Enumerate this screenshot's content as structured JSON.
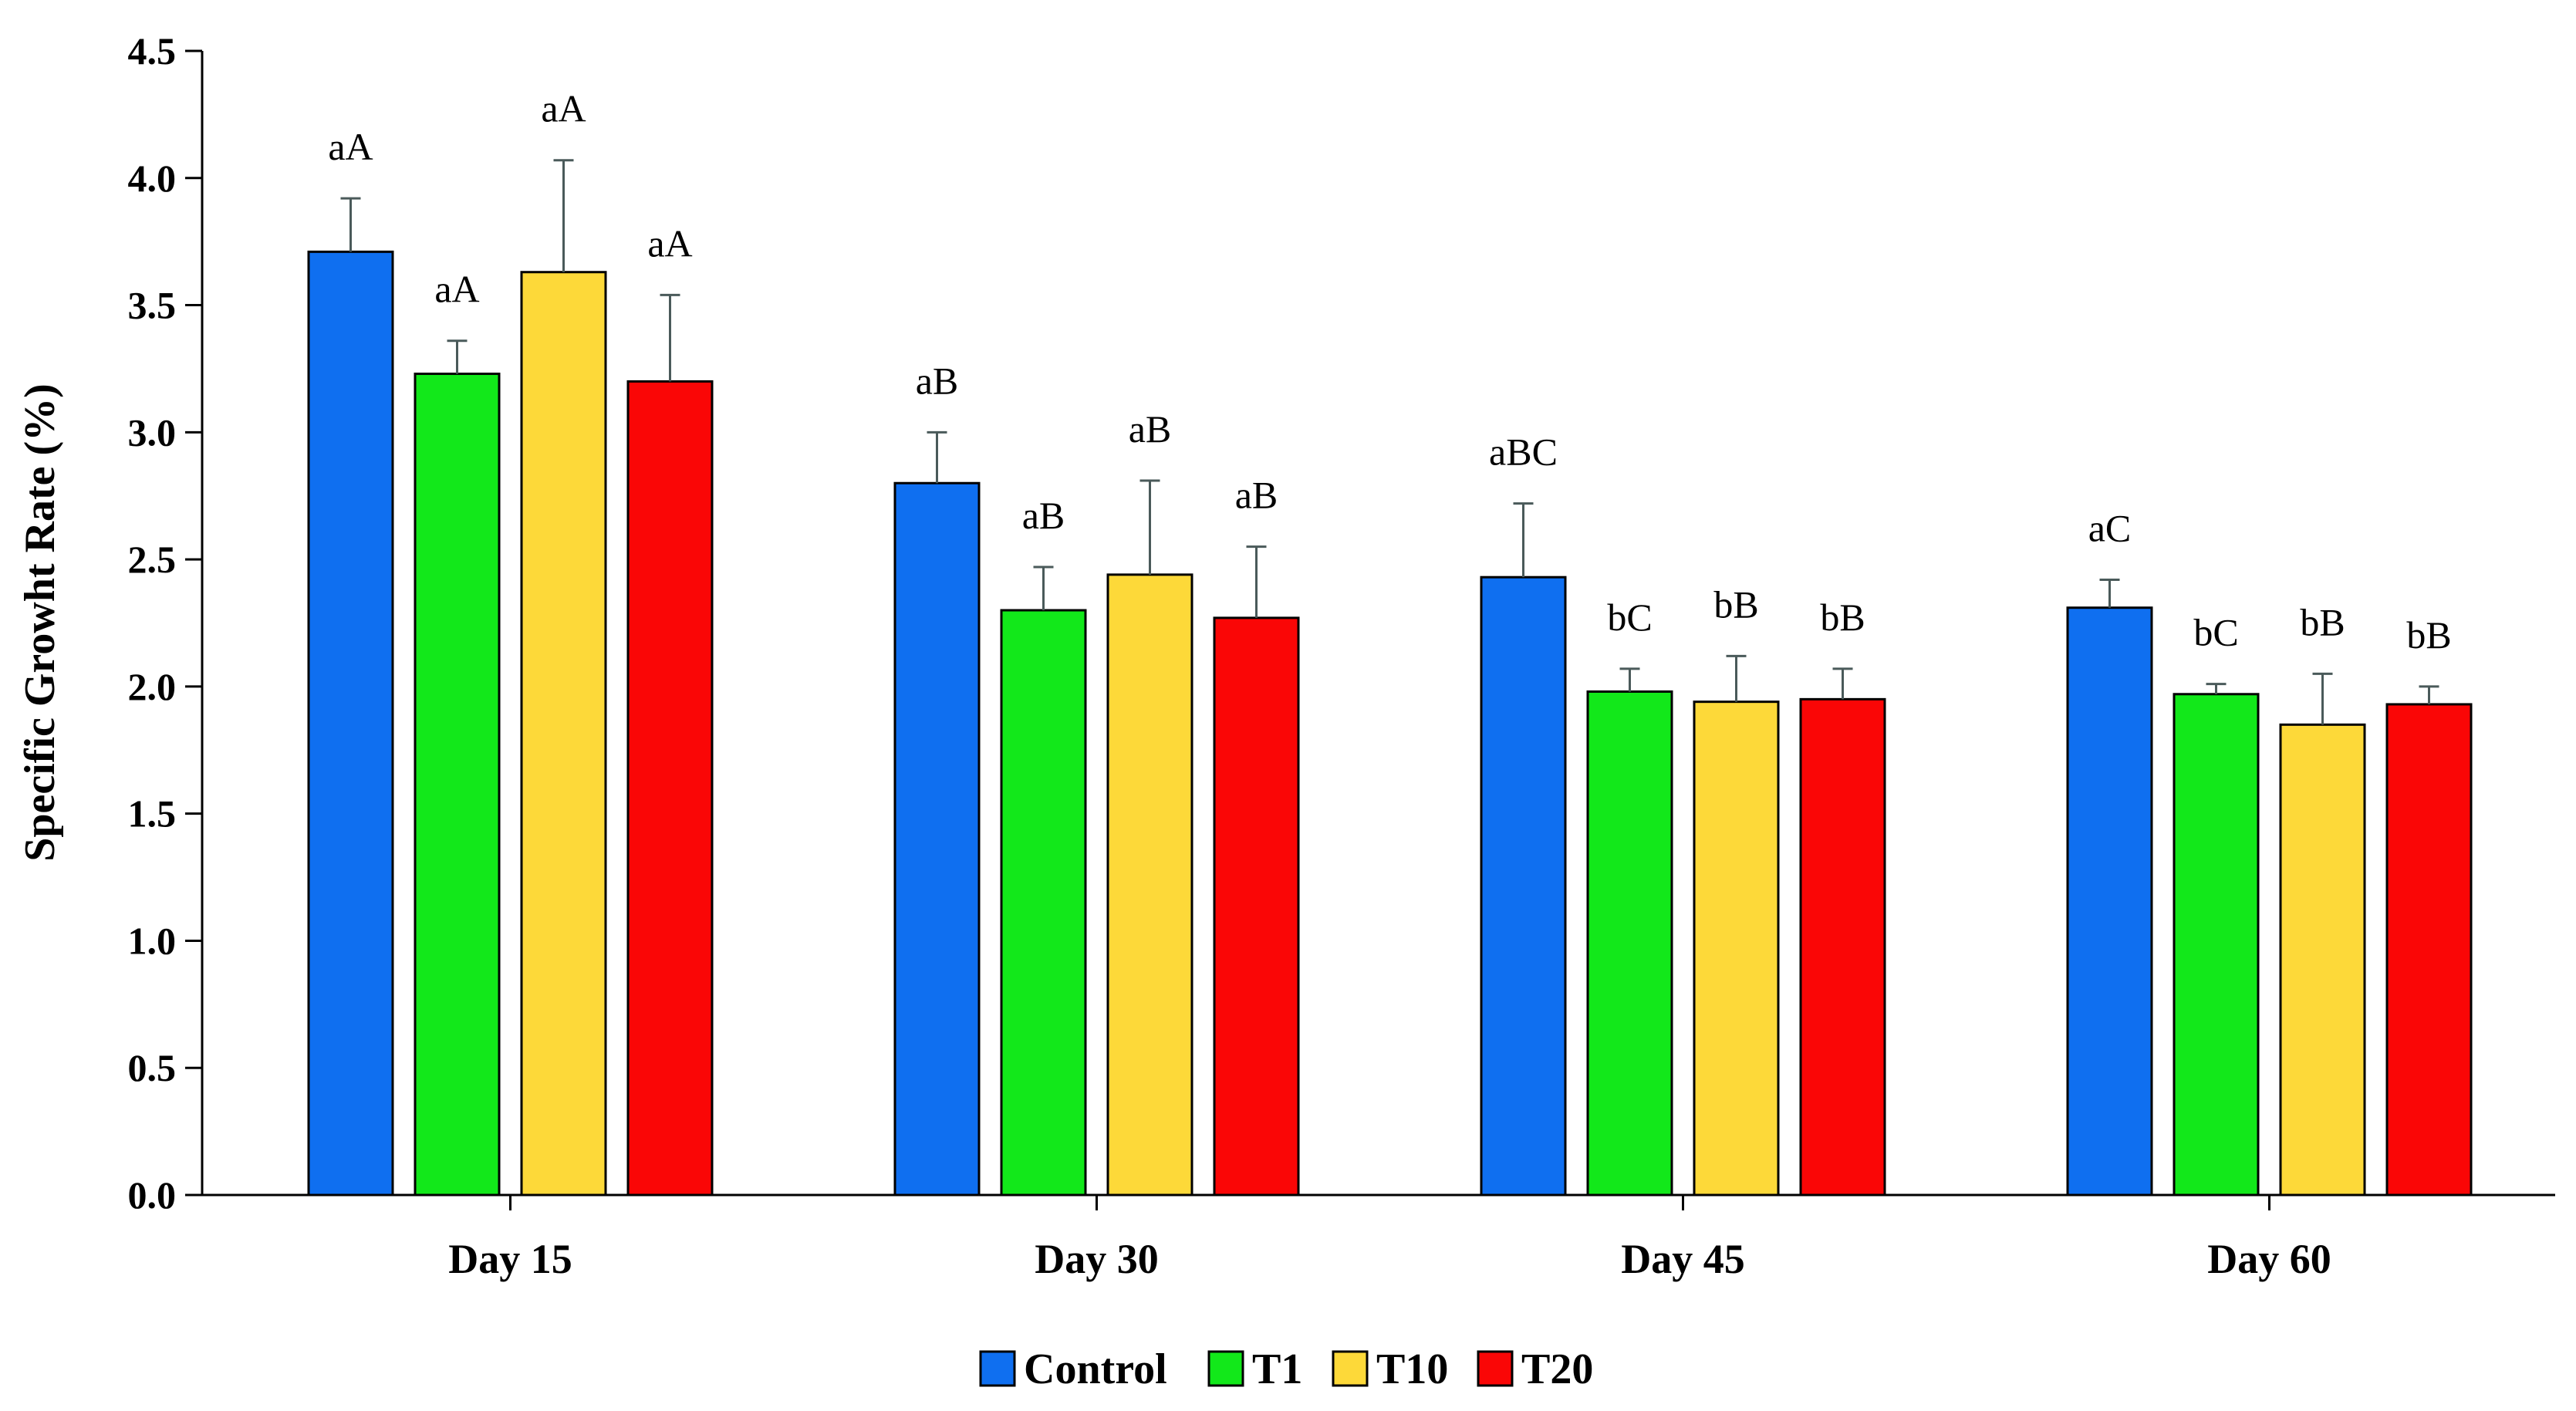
{
  "chart_data": {
    "type": "bar",
    "title": "",
    "xlabel": "",
    "ylabel": "Specific Growht Rate (%)",
    "ylim": [
      0,
      4.5
    ],
    "yticks": [
      "0.0",
      "0.5",
      "1.0",
      "1.5",
      "2.0",
      "2.5",
      "3.0",
      "3.5",
      "4.0",
      "4.5"
    ],
    "categories": [
      "Day 15",
      "Day 30",
      "Day 45",
      "Day 60"
    ],
    "legend_position": "bottom-center",
    "grid": false,
    "series": [
      {
        "name": "Control",
        "color": "#0F6FF0",
        "values": [
          3.71,
          2.8,
          2.43,
          2.31
        ],
        "errors": [
          0.21,
          0.2,
          0.29,
          0.11
        ],
        "labels": [
          "aA",
          "aB",
          "aBC",
          "aC"
        ]
      },
      {
        "name": "T1",
        "color": "#12E81A",
        "values": [
          3.23,
          2.3,
          1.98,
          1.97
        ],
        "errors": [
          0.13,
          0.17,
          0.09,
          0.04
        ],
        "labels": [
          "aA",
          "aB",
          "bC",
          "bC"
        ]
      },
      {
        "name": "T10",
        "color": "#FDD939",
        "values": [
          3.63,
          2.44,
          1.94,
          1.85
        ],
        "errors": [
          0.44,
          0.37,
          0.18,
          0.2
        ],
        "labels": [
          "aA",
          "aB",
          "bB",
          "bB"
        ]
      },
      {
        "name": "T20",
        "color": "#FA0606",
        "values": [
          3.2,
          2.27,
          1.95,
          1.93
        ],
        "errors": [
          0.34,
          0.28,
          0.12,
          0.07
        ],
        "labels": [
          "aA",
          "aB",
          "bB",
          "bB"
        ]
      }
    ]
  }
}
